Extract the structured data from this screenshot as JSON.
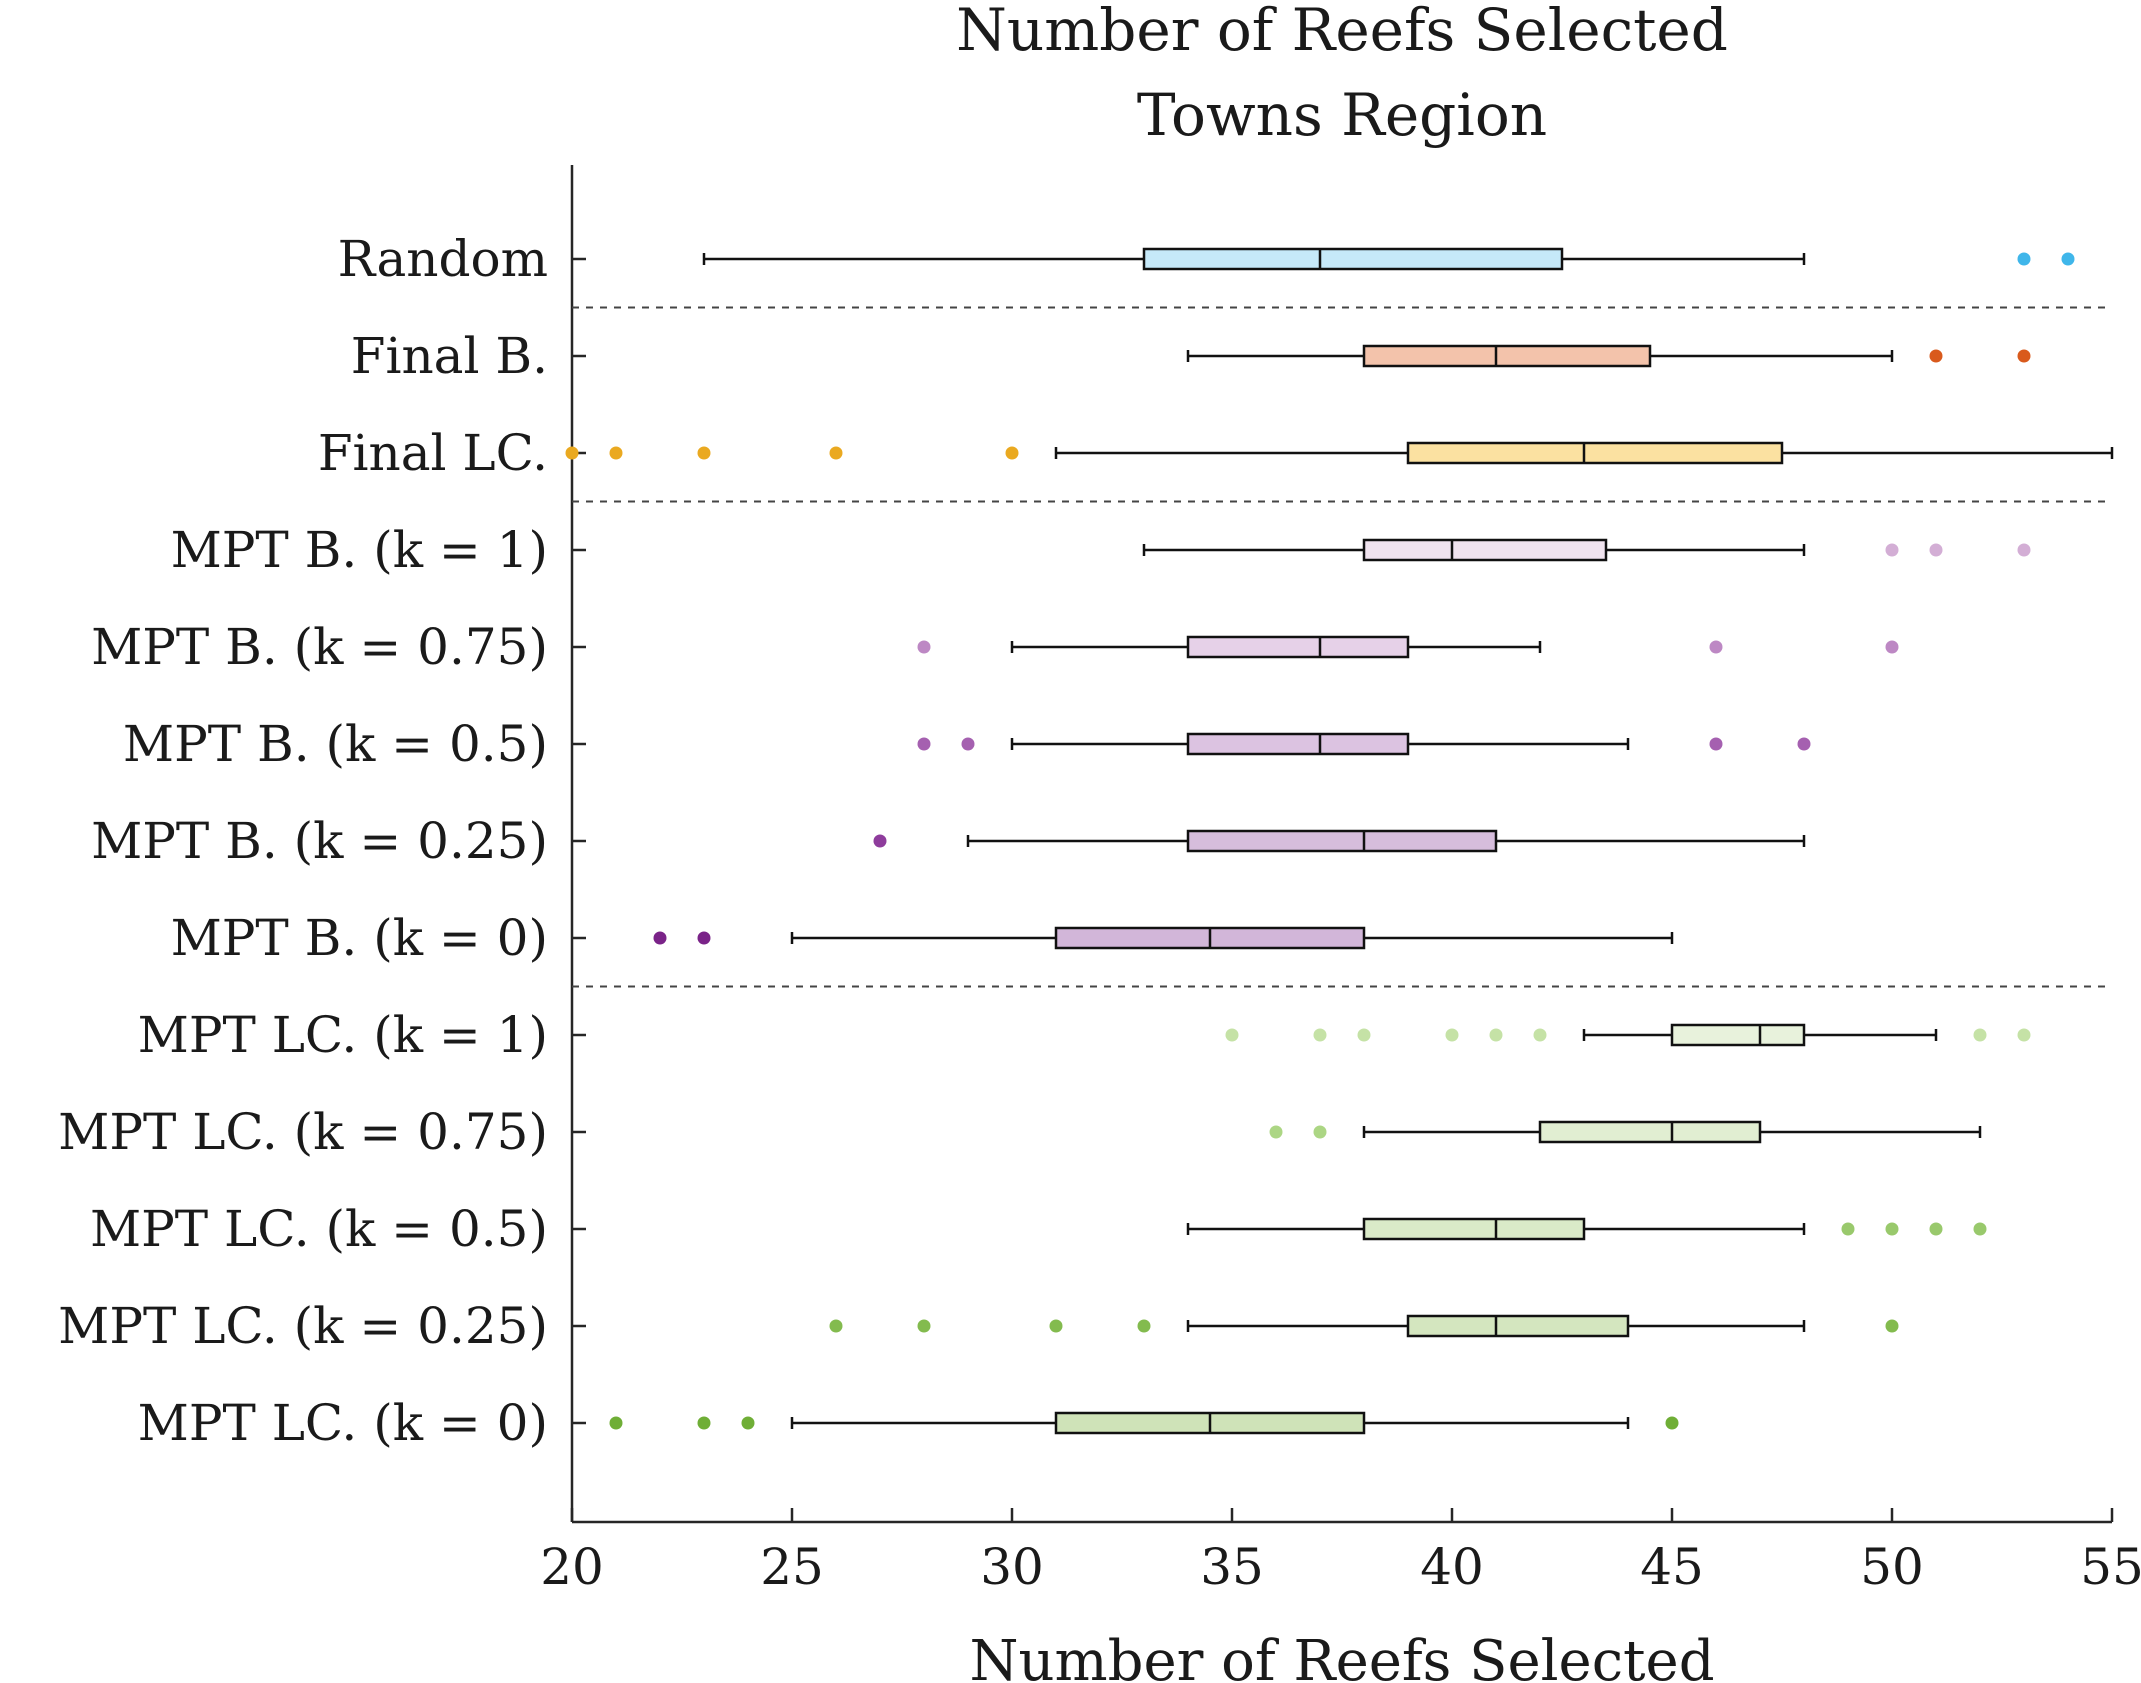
{
  "chart_data": {
    "type": "boxplot",
    "orientation": "horizontal",
    "title": "Number of Reefs Selected",
    "subtitle": "Towns Region",
    "xlabel": "Number of Reefs Selected",
    "ylabel": "",
    "xlim": [
      20,
      55
    ],
    "xticks": [
      20,
      25,
      30,
      35,
      40,
      45,
      50,
      55
    ],
    "grid": false,
    "legend": "none",
    "group_separators_after": [
      0,
      2,
      7
    ],
    "series": [
      {
        "label": "Random",
        "whisker_low": 23,
        "q1": 33,
        "median": 37,
        "q3": 42.5,
        "whisker_high": 48,
        "outliers": [
          53,
          54
        ],
        "fill": "#c6e9f9",
        "dot": "#3fb6ea"
      },
      {
        "label": "Final B.",
        "whisker_low": 34,
        "q1": 38,
        "median": 41,
        "q3": 44.5,
        "whisker_high": 50,
        "outliers": [
          51,
          53
        ],
        "fill": "#f3c3ab",
        "dot": "#d95a1c"
      },
      {
        "label": "Final LC.",
        "whisker_low": 31,
        "q1": 39,
        "median": 43,
        "q3": 47.5,
        "whisker_high": 55,
        "outliers": [
          20,
          21,
          23,
          26,
          30
        ],
        "fill": "#fbe1a1",
        "dot": "#eaa920"
      },
      {
        "label": "MPT B. (k = 1)",
        "whisker_low": 33,
        "q1": 38,
        "median": 40,
        "q3": 43.5,
        "whisker_high": 48,
        "outliers": [
          50,
          51,
          53
        ],
        "fill": "#f0e3ef",
        "dot": "#d3aed5"
      },
      {
        "label": "MPT B. (k = 0.75)",
        "whisker_low": 30,
        "q1": 34,
        "median": 37,
        "q3": 39,
        "whisker_high": 42,
        "outliers": [
          28,
          46,
          50
        ],
        "fill": "#e6d1e8",
        "dot": "#bd88c4"
      },
      {
        "label": "MPT B. (k = 0.5)",
        "whisker_low": 30,
        "q1": 34,
        "median": 37,
        "q3": 39,
        "whisker_high": 44,
        "outliers": [
          28,
          29,
          46,
          48
        ],
        "fill": "#dcc3e1",
        "dot": "#a560b0"
      },
      {
        "label": "MPT B. (k = 0.25)",
        "whisker_low": 29,
        "q1": 34,
        "median": 38,
        "q3": 41,
        "whisker_high": 48,
        "outliers": [
          27
        ],
        "fill": "#d6bddc",
        "dot": "#8e3c9c"
      },
      {
        "label": "MPT B. (k = 0)",
        "whisker_low": 25,
        "q1": 31,
        "median": 34.5,
        "q3": 38,
        "whisker_high": 45,
        "outliers": [
          22,
          23
        ],
        "fill": "#d2b6d9",
        "dot": "#7a2388"
      },
      {
        "label": "MPT LC. (k = 1)",
        "whisker_low": 43,
        "q1": 45,
        "median": 47,
        "q3": 48,
        "whisker_high": 51,
        "outliers": [
          35,
          37,
          38,
          40,
          41,
          42,
          52,
          53
        ],
        "fill": "#e8f2dc",
        "dot": "#c5e2a6"
      },
      {
        "label": "MPT LC. (k = 0.75)",
        "whisker_low": 38,
        "q1": 42,
        "median": 45,
        "q3": 47,
        "whisker_high": 52,
        "outliers": [
          36,
          37
        ],
        "fill": "#e1eed2",
        "dot": "#acd684"
      },
      {
        "label": "MPT LC. (k = 0.5)",
        "whisker_low": 34,
        "q1": 38,
        "median": 41,
        "q3": 43,
        "whisker_high": 48,
        "outliers": [
          49,
          50,
          51,
          52
        ],
        "fill": "#daeac8",
        "dot": "#99c96c"
      },
      {
        "label": "MPT LC. (k = 0.25)",
        "whisker_low": 34,
        "q1": 39,
        "median": 41,
        "q3": 44,
        "whisker_high": 48,
        "outliers": [
          26,
          28,
          31,
          33,
          50
        ],
        "fill": "#d4e6bf",
        "dot": "#83bb4e"
      },
      {
        "label": "MPT LC. (k = 0)",
        "whisker_low": 25,
        "q1": 31,
        "median": 34.5,
        "q3": 38,
        "whisker_high": 44,
        "outliers": [
          21,
          23,
          24,
          45
        ],
        "fill": "#cfe3b8",
        "dot": "#6fae36"
      }
    ]
  }
}
